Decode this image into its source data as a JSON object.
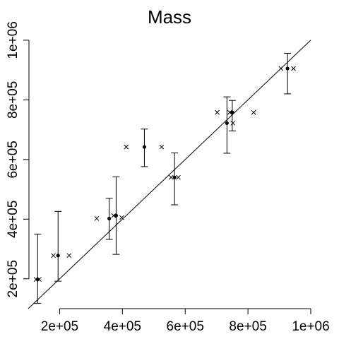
{
  "chart_data": {
    "type": "scatter",
    "title": "Mass",
    "xlabel": "",
    "ylabel": "",
    "xlim": [
      100000,
      1000000
    ],
    "ylim": [
      100000,
      1040000
    ],
    "x_ticks": [
      "2e+05",
      "4e+05",
      "6e+05",
      "8e+05",
      "1e+06"
    ],
    "x_tick_values": [
      200000,
      400000,
      600000,
      800000,
      1000000
    ],
    "y_ticks": [
      "2e+05",
      "4e+05",
      "6e+05",
      "8e+05",
      "1e+06"
    ],
    "y_tick_values": [
      200000,
      400000,
      600000,
      800000,
      1000000
    ],
    "reference_line": "y = x",
    "grid": false,
    "legend": "none",
    "series": [
      {
        "marker": "x",
        "values": [
          {
            "x": 125000,
            "y": 198000
          },
          {
            "x": 135000,
            "y": 198000
          },
          {
            "x": 180000,
            "y": 278000
          },
          {
            "x": 230000,
            "y": 278000
          },
          {
            "x": 318000,
            "y": 402000
          },
          {
            "x": 372000,
            "y": 412000
          },
          {
            "x": 398000,
            "y": 405000
          },
          {
            "x": 412000,
            "y": 642000
          },
          {
            "x": 525000,
            "y": 642000
          },
          {
            "x": 555000,
            "y": 540000
          },
          {
            "x": 578000,
            "y": 540000
          },
          {
            "x": 702000,
            "y": 758000
          },
          {
            "x": 742000,
            "y": 758000
          },
          {
            "x": 752000,
            "y": 722000
          },
          {
            "x": 818000,
            "y": 758000
          },
          {
            "x": 905000,
            "y": 905000
          },
          {
            "x": 945000,
            "y": 905000
          }
        ]
      },
      {
        "marker": "dot",
        "values": [
          {
            "x": 130000,
            "y": 198000,
            "lo": 118000,
            "hi": 350000
          },
          {
            "x": 195000,
            "y": 278000,
            "lo": 192000,
            "hi": 426000
          },
          {
            "x": 358000,
            "y": 402000,
            "lo": 332000,
            "hi": 470000
          },
          {
            "x": 380000,
            "y": 412000,
            "lo": 282000,
            "hi": 542000
          },
          {
            "x": 470000,
            "y": 642000,
            "lo": 576000,
            "hi": 702000
          },
          {
            "x": 566000,
            "y": 540000,
            "lo": 448000,
            "hi": 622000
          },
          {
            "x": 733000,
            "y": 722000,
            "lo": 621000,
            "hi": 810000
          },
          {
            "x": 750000,
            "y": 758000,
            "lo": 696000,
            "hi": 798000
          },
          {
            "x": 926000,
            "y": 905000,
            "lo": 820000,
            "hi": 956000
          }
        ]
      }
    ]
  }
}
